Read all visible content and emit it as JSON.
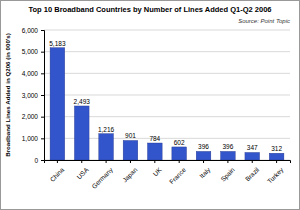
{
  "chart_data": {
    "type": "bar",
    "title": "Top 10 Broadband Countries by Number of Lines Added Q1-Q2 2006",
    "subtitle": "Source: Point Topic",
    "y_label": "Broadband Lines Added in Q206 (in 000's)",
    "categories": [
      "China",
      "USA",
      "Germany",
      "Japan",
      "UK",
      "France",
      "Italy",
      "Spain",
      "Brazil",
      "Turkey"
    ],
    "values": [
      5183,
      2493,
      1216,
      901,
      784,
      602,
      396,
      396,
      347,
      312
    ],
    "value_labels": [
      "5,183",
      "2,493",
      "1,216",
      "901",
      "784",
      "602",
      "396",
      "396",
      "347",
      "312"
    ],
    "color": "#3355cc",
    "ylim": [
      0,
      6000
    ],
    "yticks": [
      0,
      {
        "value": 1000,
        "label": "1,000"
      },
      {
        "value": 2000,
        "label": "2,000"
      },
      {
        "value": 3000,
        "label": "3,000"
      },
      {
        "value": 4000,
        "label": "4,000"
      },
      {
        "value": 5000,
        "label": "5,000"
      },
      {
        "value": 6000,
        "label": "6,000"
      }
    ],
    "grid": true,
    "data_labels": true
  }
}
